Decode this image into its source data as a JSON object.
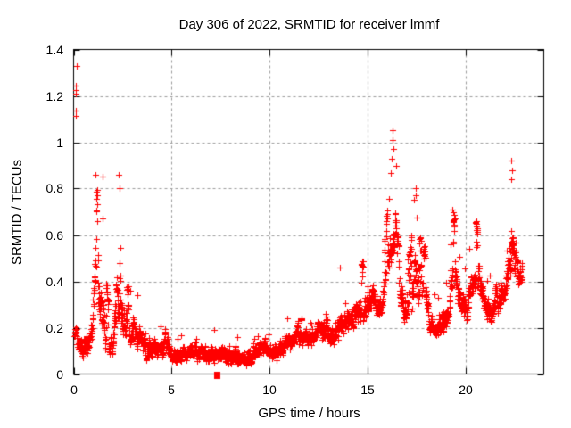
{
  "colors": {
    "background": "#ffffff",
    "marker": "#ff0000",
    "grid": "#9c9c9c",
    "border": "#000000",
    "text": "#000000"
  },
  "chart_data": {
    "type": "scatter",
    "title": "Day 306 of 2022, SRMTID for receiver lmmf",
    "xlabel": "GPS time / hours",
    "ylabel": "SRMTID / TECUs",
    "xlim": [
      0,
      24
    ],
    "ylim": [
      0,
      1.4
    ],
    "x_ticks": [
      {
        "value": 0,
        "label": "0"
      },
      {
        "value": 5,
        "label": "5"
      },
      {
        "value": 10,
        "label": "10"
      },
      {
        "value": 15,
        "label": "15"
      },
      {
        "value": 20,
        "label": "20"
      }
    ],
    "y_ticks": [
      {
        "value": 0,
        "label": "0"
      },
      {
        "value": 0.2,
        "label": "0.2"
      },
      {
        "value": 0.4,
        "label": "0.4"
      },
      {
        "value": 0.6,
        "label": "0.6"
      },
      {
        "value": 0.8,
        "label": "0.8"
      },
      {
        "value": 1,
        "label": "1"
      },
      {
        "value": 1.2,
        "label": "1.2"
      },
      {
        "value": 1.4,
        "label": "1.4"
      }
    ],
    "grid": true,
    "legend": "none",
    "marker": {
      "shape": "plus",
      "size": 7
    },
    "points_per_hour": 120,
    "t_start": 0.04,
    "t_end": 22.9,
    "seed": 42,
    "envelope": [
      [
        0.05,
        0.14,
        0.32
      ],
      [
        0.2,
        0.05,
        0.3
      ],
      [
        0.45,
        0.02,
        0.28
      ],
      [
        0.7,
        0.04,
        0.3
      ],
      [
        0.95,
        0.08,
        0.55
      ],
      [
        1.1,
        0.1,
        0.87
      ],
      [
        1.25,
        0.1,
        0.8
      ],
      [
        1.45,
        0.06,
        0.85
      ],
      [
        1.6,
        0.05,
        0.45
      ],
      [
        1.8,
        0.05,
        0.3
      ],
      [
        2.0,
        0.06,
        0.35
      ],
      [
        2.25,
        0.1,
        0.87
      ],
      [
        2.45,
        0.12,
        0.83
      ],
      [
        2.6,
        0.08,
        0.45
      ],
      [
        2.8,
        0.08,
        0.38
      ],
      [
        3.1,
        0.1,
        0.36
      ],
      [
        3.4,
        0.08,
        0.33
      ],
      [
        3.7,
        0.05,
        0.25
      ],
      [
        4.0,
        0.04,
        0.22
      ],
      [
        4.3,
        0.04,
        0.2
      ],
      [
        4.6,
        0.05,
        0.28
      ],
      [
        4.9,
        0.04,
        0.22
      ],
      [
        5.2,
        0.03,
        0.18
      ],
      [
        5.5,
        0.04,
        0.2
      ],
      [
        5.8,
        0.05,
        0.22
      ],
      [
        6.1,
        0.05,
        0.24
      ],
      [
        6.4,
        0.04,
        0.2
      ],
      [
        6.7,
        0.04,
        0.18
      ],
      [
        7.0,
        0.03,
        0.2
      ],
      [
        7.3,
        0.04,
        0.18
      ],
      [
        7.6,
        0.04,
        0.2
      ],
      [
        7.9,
        0.03,
        0.18
      ],
      [
        8.2,
        0.03,
        0.17
      ],
      [
        8.5,
        0.02,
        0.16
      ],
      [
        8.8,
        0.02,
        0.16
      ],
      [
        9.1,
        0.03,
        0.18
      ],
      [
        9.4,
        0.05,
        0.2
      ],
      [
        9.7,
        0.05,
        0.22
      ],
      [
        10.0,
        0.06,
        0.2
      ],
      [
        10.3,
        0.04,
        0.18
      ],
      [
        10.6,
        0.06,
        0.22
      ],
      [
        10.9,
        0.08,
        0.26
      ],
      [
        11.2,
        0.09,
        0.3
      ],
      [
        11.35,
        0.1,
        0.33
      ],
      [
        11.7,
        0.09,
        0.26
      ],
      [
        12.0,
        0.1,
        0.28
      ],
      [
        12.3,
        0.11,
        0.28
      ],
      [
        12.55,
        0.11,
        0.3
      ],
      [
        12.75,
        0.12,
        0.36
      ],
      [
        13.1,
        0.1,
        0.3
      ],
      [
        13.4,
        0.12,
        0.4
      ],
      [
        13.6,
        0.14,
        0.47
      ],
      [
        13.9,
        0.14,
        0.38
      ],
      [
        14.2,
        0.16,
        0.42
      ],
      [
        14.65,
        0.18,
        0.48
      ],
      [
        15.0,
        0.2,
        0.53
      ],
      [
        15.3,
        0.24,
        0.55
      ],
      [
        15.6,
        0.18,
        0.46
      ],
      [
        15.9,
        0.28,
        0.62
      ],
      [
        16.1,
        0.35,
        0.8
      ],
      [
        16.3,
        0.45,
        1.06
      ],
      [
        16.45,
        0.4,
        0.95
      ],
      [
        16.6,
        0.28,
        0.75
      ],
      [
        16.85,
        0.15,
        0.45
      ],
      [
        17.2,
        0.2,
        0.55
      ],
      [
        17.45,
        0.3,
        0.84
      ],
      [
        17.65,
        0.2,
        0.6
      ],
      [
        17.9,
        0.25,
        0.55
      ],
      [
        18.15,
        0.15,
        0.38
      ],
      [
        18.5,
        0.13,
        0.33
      ],
      [
        18.85,
        0.15,
        0.38
      ],
      [
        19.15,
        0.2,
        0.5
      ],
      [
        19.35,
        0.3,
        0.72
      ],
      [
        19.6,
        0.25,
        0.6
      ],
      [
        19.85,
        0.2,
        0.5
      ],
      [
        20.1,
        0.2,
        0.48
      ],
      [
        20.3,
        0.3,
        0.62
      ],
      [
        20.55,
        0.3,
        0.66
      ],
      [
        20.8,
        0.25,
        0.55
      ],
      [
        21.1,
        0.17,
        0.45
      ],
      [
        21.4,
        0.18,
        0.45
      ],
      [
        21.65,
        0.22,
        0.48
      ],
      [
        21.9,
        0.26,
        0.52
      ],
      [
        22.15,
        0.3,
        0.62
      ],
      [
        22.35,
        0.35,
        0.93
      ],
      [
        22.5,
        0.32,
        0.8
      ],
      [
        22.7,
        0.35,
        0.65
      ],
      [
        22.9,
        0.4,
        0.55
      ]
    ],
    "outliers_high": [
      [
        0.14,
        1.33
      ],
      [
        0.1,
        1.245
      ],
      [
        0.1,
        1.225
      ],
      [
        0.11,
        1.21
      ],
      [
        0.12,
        1.135
      ],
      [
        0.13,
        1.115
      ]
    ],
    "peak_points": [
      [
        1.1,
        0.86
      ],
      [
        1.47,
        0.85
      ],
      [
        2.28,
        0.86
      ],
      [
        2.33,
        0.8
      ],
      [
        13.6,
        0.46
      ],
      [
        16.28,
        1.05
      ],
      [
        16.3,
        1.01
      ],
      [
        16.33,
        0.97
      ],
      [
        16.25,
        0.93
      ],
      [
        17.45,
        0.8
      ],
      [
        17.47,
        0.77
      ],
      [
        19.35,
        0.71
      ],
      [
        20.5,
        0.65
      ],
      [
        22.35,
        0.92
      ],
      [
        22.37,
        0.88
      ],
      [
        22.33,
        0.84
      ]
    ],
    "square_marker": {
      "t": 7.3,
      "value": 0
    }
  }
}
